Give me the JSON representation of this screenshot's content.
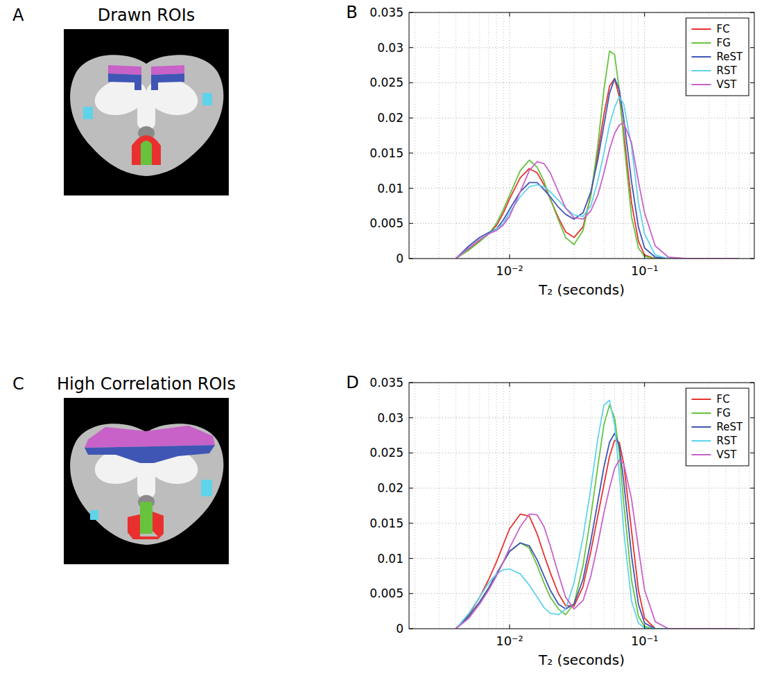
{
  "panels": [
    {
      "letter": "A",
      "title": "Drawn ROIs"
    },
    {
      "letter": "B"
    },
    {
      "letter": "C",
      "title": "High Correlation ROIs"
    },
    {
      "letter": "D"
    }
  ],
  "chart_data": [
    {
      "type": "line",
      "xlabel": "T₂ (seconds)",
      "log": "x",
      "grid": true,
      "legend": "northeast",
      "xlim": [
        0.0018,
        0.65
      ],
      "ylim": [
        0,
        0.035
      ],
      "xticks": [
        {
          "value": 0.01,
          "label": "10⁻²"
        },
        {
          "value": 0.1,
          "label": "10⁻¹"
        }
      ],
      "yticks": [
        0,
        0.005,
        0.01,
        0.015,
        0.02,
        0.025,
        0.03,
        0.035
      ],
      "x": [
        0.004,
        0.005,
        0.006,
        0.007,
        0.008,
        0.009,
        0.01,
        0.012,
        0.014,
        0.016,
        0.018,
        0.02,
        0.023,
        0.026,
        0.03,
        0.035,
        0.04,
        0.045,
        0.05,
        0.055,
        0.06,
        0.065,
        0.07,
        0.08,
        0.09,
        0.1,
        0.12,
        0.15,
        0.2,
        0.3,
        0.5
      ],
      "series": [
        {
          "name": "FC",
          "color": "#e8312f",
          "values": [
            0,
            0.0013,
            0.0025,
            0.0035,
            0.0047,
            0.0065,
            0.0085,
            0.0115,
            0.0128,
            0.0122,
            0.0105,
            0.0085,
            0.0058,
            0.0038,
            0.003,
            0.0045,
            0.009,
            0.015,
            0.0205,
            0.0245,
            0.0256,
            0.023,
            0.018,
            0.008,
            0.0025,
            0.0005,
            0,
            0,
            0,
            0,
            0
          ]
        },
        {
          "name": "FG",
          "color": "#67c23d",
          "values": [
            0,
            0.0012,
            0.0024,
            0.0035,
            0.005,
            0.007,
            0.009,
            0.0125,
            0.014,
            0.013,
            0.011,
            0.0085,
            0.0055,
            0.003,
            0.002,
            0.004,
            0.009,
            0.016,
            0.024,
            0.0295,
            0.029,
            0.024,
            0.017,
            0.006,
            0.0015,
            0.0003,
            0,
            0,
            0,
            0,
            0
          ]
        },
        {
          "name": "ReST",
          "color": "#4056b5",
          "values": [
            0,
            0.0018,
            0.003,
            0.0037,
            0.0042,
            0.0055,
            0.007,
            0.0095,
            0.0108,
            0.0108,
            0.0098,
            0.0088,
            0.0073,
            0.0063,
            0.0056,
            0.0065,
            0.0095,
            0.014,
            0.019,
            0.0235,
            0.0256,
            0.024,
            0.02,
            0.011,
            0.0045,
            0.0015,
            0.0002,
            0,
            0,
            0,
            0
          ]
        },
        {
          "name": "RST",
          "color": "#5fd3ea",
          "values": [
            0,
            0.0015,
            0.0027,
            0.0035,
            0.0042,
            0.005,
            0.0065,
            0.0088,
            0.0102,
            0.0105,
            0.0102,
            0.0095,
            0.0083,
            0.0072,
            0.0062,
            0.006,
            0.0075,
            0.011,
            0.015,
            0.019,
            0.0215,
            0.023,
            0.022,
            0.016,
            0.008,
            0.0035,
            0.0005,
            0,
            0,
            0,
            0
          ]
        },
        {
          "name": "VST",
          "color": "#c861c8",
          "values": [
            0,
            0.0015,
            0.0027,
            0.0035,
            0.004,
            0.0048,
            0.006,
            0.0095,
            0.0125,
            0.0138,
            0.0135,
            0.0122,
            0.0095,
            0.0072,
            0.0058,
            0.0056,
            0.0068,
            0.009,
            0.0122,
            0.0155,
            0.0178,
            0.019,
            0.0193,
            0.0165,
            0.011,
            0.0065,
            0.0018,
            0.0002,
            0,
            0,
            0
          ]
        }
      ]
    },
    {
      "type": "line",
      "xlabel": "T₂ (seconds)",
      "log": "x",
      "grid": true,
      "legend": "northeast",
      "xlim": [
        0.0018,
        0.65
      ],
      "ylim": [
        0,
        0.035
      ],
      "xticks": [
        {
          "value": 0.01,
          "label": "10⁻²"
        },
        {
          "value": 0.1,
          "label": "10⁻¹"
        }
      ],
      "yticks": [
        0,
        0.005,
        0.01,
        0.015,
        0.02,
        0.025,
        0.03,
        0.035
      ],
      "x": [
        0.004,
        0.005,
        0.006,
        0.007,
        0.008,
        0.009,
        0.01,
        0.012,
        0.014,
        0.016,
        0.018,
        0.02,
        0.023,
        0.026,
        0.03,
        0.035,
        0.04,
        0.045,
        0.05,
        0.055,
        0.06,
        0.065,
        0.07,
        0.08,
        0.09,
        0.1,
        0.12,
        0.15,
        0.2,
        0.3,
        0.5
      ],
      "series": [
        {
          "name": "FC",
          "color": "#e8312f",
          "values": [
            0,
            0.002,
            0.0045,
            0.007,
            0.0095,
            0.012,
            0.0142,
            0.0163,
            0.016,
            0.0135,
            0.0105,
            0.008,
            0.005,
            0.0033,
            0.0032,
            0.006,
            0.011,
            0.016,
            0.0205,
            0.0245,
            0.0268,
            0.0265,
            0.0235,
            0.014,
            0.0055,
            0.0015,
            0,
            0,
            0,
            0,
            0
          ]
        },
        {
          "name": "FG",
          "color": "#67c23d",
          "values": [
            0,
            0.0018,
            0.0038,
            0.0058,
            0.0078,
            0.0095,
            0.011,
            0.0122,
            0.0115,
            0.009,
            0.0065,
            0.0045,
            0.0028,
            0.002,
            0.0035,
            0.009,
            0.016,
            0.023,
            0.029,
            0.0318,
            0.03,
            0.025,
            0.018,
            0.007,
            0.0018,
            0.0003,
            0,
            0,
            0,
            0,
            0
          ]
        },
        {
          "name": "ReST",
          "color": "#4056b5",
          "values": [
            0,
            0.0018,
            0.0038,
            0.0058,
            0.0078,
            0.0095,
            0.011,
            0.0122,
            0.0118,
            0.0098,
            0.0075,
            0.0055,
            0.0035,
            0.0028,
            0.0035,
            0.007,
            0.0125,
            0.018,
            0.023,
            0.0265,
            0.0278,
            0.026,
            0.021,
            0.0105,
            0.0035,
            0.0008,
            0,
            0,
            0,
            0,
            0
          ]
        },
        {
          "name": "RST",
          "color": "#5fd3ea",
          "values": [
            0,
            0.0022,
            0.0045,
            0.0065,
            0.0078,
            0.0084,
            0.0085,
            0.0078,
            0.0062,
            0.0045,
            0.003,
            0.0022,
            0.002,
            0.0028,
            0.0065,
            0.013,
            0.02,
            0.027,
            0.0318,
            0.0325,
            0.029,
            0.022,
            0.014,
            0.004,
            0.0008,
            0.0001,
            0,
            0,
            0,
            0,
            0
          ]
        },
        {
          "name": "VST",
          "color": "#c861c8",
          "values": [
            0,
            0.0015,
            0.0035,
            0.0055,
            0.0075,
            0.0095,
            0.0115,
            0.0145,
            0.0163,
            0.0162,
            0.0145,
            0.0118,
            0.0078,
            0.0045,
            0.0028,
            0.004,
            0.0075,
            0.012,
            0.0165,
            0.02,
            0.0228,
            0.024,
            0.0235,
            0.0185,
            0.0115,
            0.0055,
            0.001,
            0,
            0,
            0,
            0
          ]
        }
      ]
    }
  ]
}
